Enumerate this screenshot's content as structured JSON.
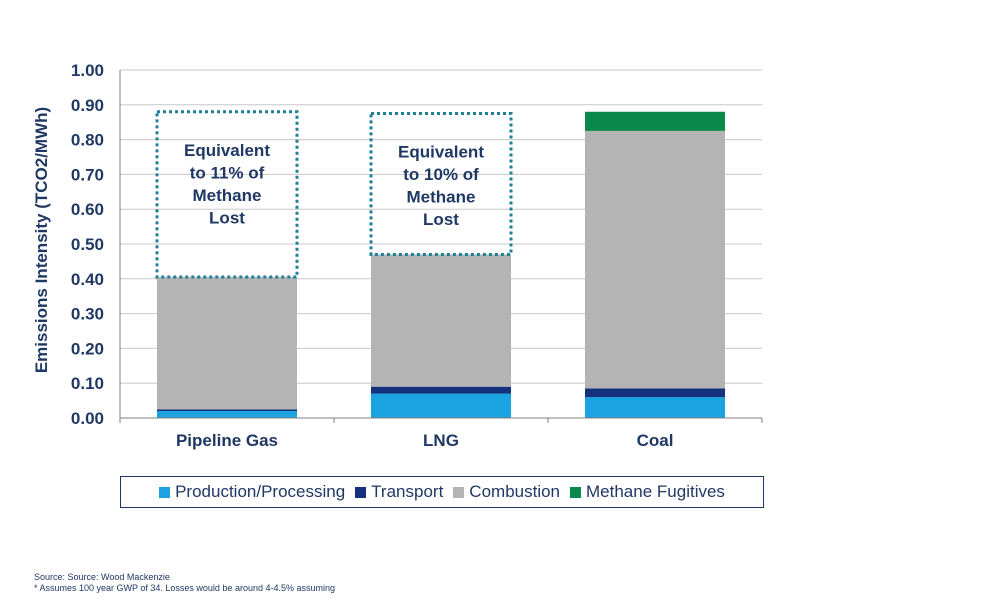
{
  "chart_data": {
    "type": "bar",
    "stacked": true,
    "categories": [
      "Pipeline Gas",
      "LNG",
      "Coal"
    ],
    "series": [
      {
        "name": "Production/Processing",
        "color": "#1aa3e0",
        "values": [
          0.02,
          0.07,
          0.06
        ]
      },
      {
        "name": "Transport",
        "color": "#15317e",
        "values": [
          0.005,
          0.02,
          0.025
        ]
      },
      {
        "name": "Combustion",
        "color": "#b4b4b4",
        "values": [
          0.38,
          0.38,
          0.74
        ]
      },
      {
        "name": "Methane Fugitives",
        "color": "#0a8a4a",
        "values": [
          0,
          0,
          0.055
        ]
      }
    ],
    "ylabel": "Emissions Intensity (TCO2/MWh)",
    "xlabel": "",
    "ylim": [
      0,
      1.0
    ],
    "yticks": [
      "0.00",
      "0.10",
      "0.20",
      "0.30",
      "0.40",
      "0.50",
      "0.60",
      "0.70",
      "0.80",
      "0.90",
      "1.00"
    ],
    "grid": true,
    "legend_position": "bottom",
    "annotations": [
      {
        "category": "Pipeline Gas",
        "lines": [
          "Equivalent",
          "to 11% of",
          "Methane",
          "Lost"
        ],
        "y_from": 0.405,
        "y_to": 0.88,
        "style": "dotted-box",
        "color": "#1f7f96"
      },
      {
        "category": "LNG",
        "lines": [
          "Equivalent",
          "to 10% of",
          "Methane",
          "Lost"
        ],
        "y_from": 0.47,
        "y_to": 0.875,
        "style": "dotted-box",
        "color": "#1f7f96"
      }
    ]
  },
  "footnotes": {
    "source": "Source: Source: Wood Mackenzie",
    "note": "* Assumes 100 year GWP of 34. Losses would be around 4-4.5% assuming"
  }
}
